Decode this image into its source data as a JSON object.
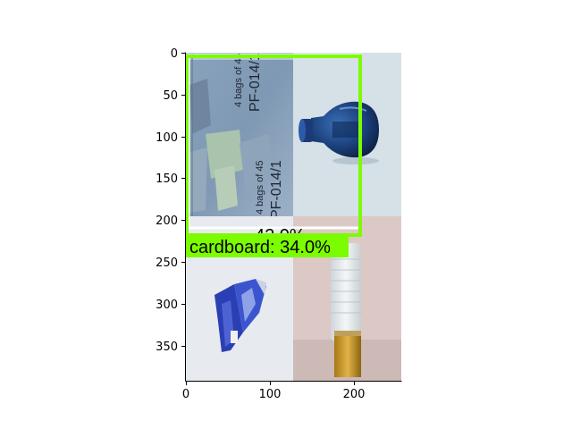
{
  "figure": {
    "x_ticks": [
      "0",
      "100",
      "200"
    ],
    "y_ticks": [
      "0",
      "50",
      "100",
      "150",
      "200",
      "250",
      "300",
      "350"
    ]
  },
  "detections": [
    {
      "label": "cardboard: 34.0%",
      "color": "#7cfc00"
    },
    {
      "label": "42.0%",
      "color": "#ffffff"
    }
  ],
  "colors": {
    "detection_box": "#7cfc00",
    "secondary_box": "#ffffff",
    "axis": "#000000"
  },
  "tiles": [
    {
      "name": "cardboard",
      "printed_text": [
        "4 bags of 45",
        "PF-014/1",
        "4 bags of 45",
        "PF-014/1"
      ]
    },
    {
      "name": "blue-glass-bottle"
    },
    {
      "name": "crushed-blue-can"
    },
    {
      "name": "plastic-water-bottle"
    }
  ]
}
